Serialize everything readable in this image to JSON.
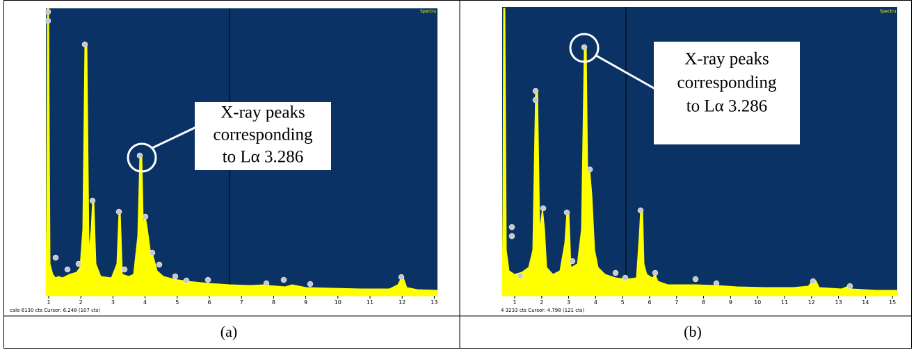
{
  "panels": [
    {
      "caption": "(a)",
      "callout": [
        "X-ray peaks",
        "corresponding",
        "to Lα 3.286"
      ],
      "spectrum_label": "Spectru",
      "status": "cale 6130 cts Cursor: 6.248 (107 cts)",
      "x_ticks": [
        1,
        2,
        3,
        4,
        5,
        6,
        7,
        8,
        9,
        10,
        11,
        12,
        13
      ]
    },
    {
      "caption": "(b)",
      "callout": [
        "X-ray peaks",
        "corresponding",
        "to Lα 3.286"
      ],
      "spectrum_label": "Spectru",
      "status": "4 3233 cts Cursor: 4.798 (121 cts)",
      "x_ticks": [
        1,
        2,
        3,
        4,
        5,
        6,
        7,
        8,
        9,
        10,
        11,
        12,
        13,
        14,
        15
      ]
    }
  ]
}
